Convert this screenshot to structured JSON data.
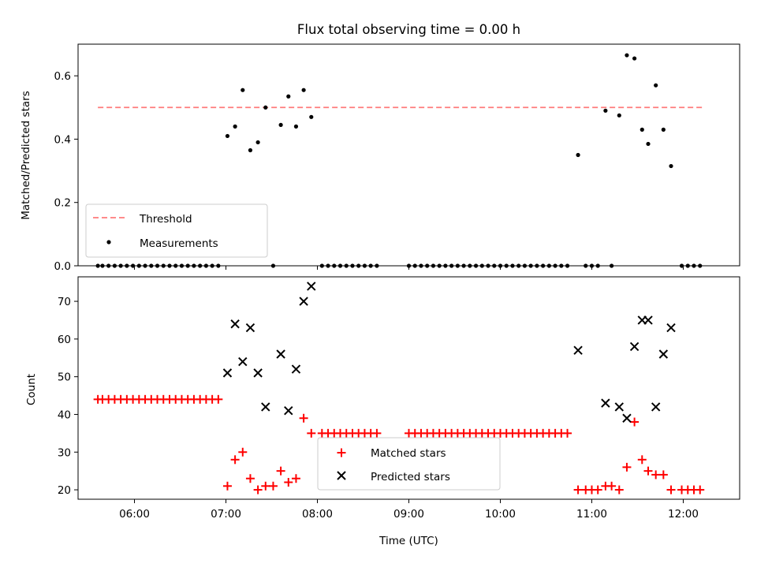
{
  "chart_data": [
    {
      "type": "scatter",
      "title": "Flux total observing time = 0.00 h",
      "ylabel": "Matched/Predicted stars",
      "ylim": [
        0,
        0.7
      ],
      "yticks": [
        0.0,
        0.2,
        0.4,
        0.6
      ],
      "ytick_labels": [
        "0.0",
        "0.2",
        "0.4",
        "0.6"
      ],
      "legend_position": "lower-left",
      "threshold": {
        "name": "Threshold",
        "value": 0.5,
        "x_start": "05:36",
        "x_end": "12:14",
        "color": "#ff7b7b",
        "style": "dashed"
      },
      "series": [
        {
          "name": "Measurements",
          "color": "#000000",
          "marker": "dot",
          "points": [
            [
              "05:36",
              0
            ],
            [
              "05:39",
              0
            ],
            [
              "05:43",
              0
            ],
            [
              "05:47",
              0
            ],
            [
              "05:51",
              0
            ],
            [
              "05:55",
              0
            ],
            [
              "05:59",
              0
            ],
            [
              "06:03",
              0
            ],
            [
              "06:07",
              0
            ],
            [
              "06:11",
              0
            ],
            [
              "06:15",
              0
            ],
            [
              "06:19",
              0
            ],
            [
              "06:23",
              0
            ],
            [
              "06:27",
              0
            ],
            [
              "06:31",
              0
            ],
            [
              "06:35",
              0
            ],
            [
              "06:39",
              0
            ],
            [
              "06:43",
              0
            ],
            [
              "06:47",
              0
            ],
            [
              "06:51",
              0
            ],
            [
              "06:55",
              0
            ],
            [
              "07:01",
              0.41
            ],
            [
              "07:06",
              0.44
            ],
            [
              "07:11",
              0.555
            ],
            [
              "07:16",
              0.365
            ],
            [
              "07:21",
              0.39
            ],
            [
              "07:26",
              0.5
            ],
            [
              "07:31",
              0
            ],
            [
              "07:36",
              0.445
            ],
            [
              "07:41",
              0.535
            ],
            [
              "07:46",
              0.44
            ],
            [
              "07:51",
              0.555
            ],
            [
              "07:56",
              0.47
            ],
            [
              "08:03",
              0
            ],
            [
              "08:07",
              0
            ],
            [
              "08:11",
              0
            ],
            [
              "08:15",
              0
            ],
            [
              "08:19",
              0
            ],
            [
              "08:23",
              0
            ],
            [
              "08:27",
              0
            ],
            [
              "08:31",
              0
            ],
            [
              "08:35",
              0
            ],
            [
              "08:39",
              0
            ],
            [
              "09:00",
              0
            ],
            [
              "09:04",
              0
            ],
            [
              "09:08",
              0
            ],
            [
              "09:12",
              0
            ],
            [
              "09:16",
              0
            ],
            [
              "09:20",
              0
            ],
            [
              "09:24",
              0
            ],
            [
              "09:28",
              0
            ],
            [
              "09:32",
              0
            ],
            [
              "09:36",
              0
            ],
            [
              "09:40",
              0
            ],
            [
              "09:44",
              0
            ],
            [
              "09:48",
              0
            ],
            [
              "09:52",
              0
            ],
            [
              "09:56",
              0
            ],
            [
              "10:00",
              0
            ],
            [
              "10:04",
              0
            ],
            [
              "10:08",
              0
            ],
            [
              "10:12",
              0
            ],
            [
              "10:16",
              0
            ],
            [
              "10:20",
              0
            ],
            [
              "10:24",
              0
            ],
            [
              "10:28",
              0
            ],
            [
              "10:32",
              0
            ],
            [
              "10:36",
              0
            ],
            [
              "10:40",
              0
            ],
            [
              "10:44",
              0
            ],
            [
              "10:51",
              0.35
            ],
            [
              "10:56",
              0
            ],
            [
              "11:00",
              0
            ],
            [
              "11:04",
              0
            ],
            [
              "11:09",
              0.49
            ],
            [
              "11:13",
              0
            ],
            [
              "11:18",
              0.475
            ],
            [
              "11:23",
              0.665
            ],
            [
              "11:28",
              0.655
            ],
            [
              "11:33",
              0.43
            ],
            [
              "11:37",
              0.385
            ],
            [
              "11:42",
              0.57
            ],
            [
              "11:47",
              0.43
            ],
            [
              "11:52",
              0.315
            ],
            [
              "11:59",
              0
            ],
            [
              "12:03",
              0
            ],
            [
              "12:07",
              0
            ],
            [
              "12:11",
              0
            ]
          ]
        }
      ]
    },
    {
      "type": "scatter",
      "xlabel": "Time (UTC)",
      "ylabel": "Count",
      "xlim": [
        "05:23",
        "12:37"
      ],
      "ylim": [
        17.5,
        76.5
      ],
      "xticks": [
        "06:00",
        "07:00",
        "08:00",
        "09:00",
        "10:00",
        "11:00",
        "12:00"
      ],
      "yticks": [
        20,
        30,
        40,
        50,
        60,
        70
      ],
      "ytick_labels": [
        "20",
        "30",
        "40",
        "50",
        "60",
        "70"
      ],
      "legend_position": "lower-center",
      "series": [
        {
          "name": "Matched stars",
          "color": "#ff0000",
          "marker": "plus",
          "points": [
            [
              "05:36",
              44
            ],
            [
              "05:39",
              44
            ],
            [
              "05:43",
              44
            ],
            [
              "05:47",
              44
            ],
            [
              "05:51",
              44
            ],
            [
              "05:55",
              44
            ],
            [
              "05:59",
              44
            ],
            [
              "06:03",
              44
            ],
            [
              "06:07",
              44
            ],
            [
              "06:11",
              44
            ],
            [
              "06:15",
              44
            ],
            [
              "06:19",
              44
            ],
            [
              "06:23",
              44
            ],
            [
              "06:27",
              44
            ],
            [
              "06:31",
              44
            ],
            [
              "06:35",
              44
            ],
            [
              "06:39",
              44
            ],
            [
              "06:43",
              44
            ],
            [
              "06:47",
              44
            ],
            [
              "06:51",
              44
            ],
            [
              "06:55",
              44
            ],
            [
              "07:01",
              21
            ],
            [
              "07:06",
              28
            ],
            [
              "07:11",
              30
            ],
            [
              "07:16",
              23
            ],
            [
              "07:21",
              20
            ],
            [
              "07:26",
              21
            ],
            [
              "07:31",
              21
            ],
            [
              "07:36",
              25
            ],
            [
              "07:41",
              22
            ],
            [
              "07:46",
              23
            ],
            [
              "07:51",
              39
            ],
            [
              "07:56",
              35
            ],
            [
              "08:03",
              35
            ],
            [
              "08:07",
              35
            ],
            [
              "08:11",
              35
            ],
            [
              "08:15",
              35
            ],
            [
              "08:19",
              35
            ],
            [
              "08:23",
              35
            ],
            [
              "08:27",
              35
            ],
            [
              "08:31",
              35
            ],
            [
              "08:35",
              35
            ],
            [
              "08:39",
              35
            ],
            [
              "09:00",
              35
            ],
            [
              "09:04",
              35
            ],
            [
              "09:08",
              35
            ],
            [
              "09:12",
              35
            ],
            [
              "09:16",
              35
            ],
            [
              "09:20",
              35
            ],
            [
              "09:24",
              35
            ],
            [
              "09:28",
              35
            ],
            [
              "09:32",
              35
            ],
            [
              "09:36",
              35
            ],
            [
              "09:40",
              35
            ],
            [
              "09:44",
              35
            ],
            [
              "09:48",
              35
            ],
            [
              "09:52",
              35
            ],
            [
              "09:56",
              35
            ],
            [
              "10:00",
              35
            ],
            [
              "10:04",
              35
            ],
            [
              "10:08",
              35
            ],
            [
              "10:12",
              35
            ],
            [
              "10:16",
              35
            ],
            [
              "10:20",
              35
            ],
            [
              "10:24",
              35
            ],
            [
              "10:28",
              35
            ],
            [
              "10:32",
              35
            ],
            [
              "10:36",
              35
            ],
            [
              "10:40",
              35
            ],
            [
              "10:44",
              35
            ],
            [
              "10:51",
              20
            ],
            [
              "10:56",
              20
            ],
            [
              "11:00",
              20
            ],
            [
              "11:04",
              20
            ],
            [
              "11:09",
              21
            ],
            [
              "11:13",
              21
            ],
            [
              "11:18",
              20
            ],
            [
              "11:23",
              26
            ],
            [
              "11:28",
              38
            ],
            [
              "11:33",
              28
            ],
            [
              "11:37",
              25
            ],
            [
              "11:42",
              24
            ],
            [
              "11:47",
              24
            ],
            [
              "11:52",
              20
            ],
            [
              "11:59",
              20
            ],
            [
              "12:03",
              20
            ],
            [
              "12:07",
              20
            ],
            [
              "12:11",
              20
            ]
          ]
        },
        {
          "name": "Predicted stars",
          "color": "#000000",
          "marker": "x",
          "points": [
            [
              "07:01",
              51
            ],
            [
              "07:06",
              64
            ],
            [
              "07:11",
              54
            ],
            [
              "07:16",
              63
            ],
            [
              "07:21",
              51
            ],
            [
              "07:26",
              42
            ],
            [
              "07:36",
              56
            ],
            [
              "07:41",
              41
            ],
            [
              "07:46",
              52
            ],
            [
              "07:51",
              70
            ],
            [
              "07:56",
              74
            ],
            [
              "10:51",
              57
            ],
            [
              "11:09",
              43
            ],
            [
              "11:18",
              42
            ],
            [
              "11:23",
              39
            ],
            [
              "11:28",
              58
            ],
            [
              "11:33",
              65
            ],
            [
              "11:37",
              65
            ],
            [
              "11:42",
              42
            ],
            [
              "11:47",
              56
            ],
            [
              "11:52",
              63
            ]
          ]
        }
      ]
    }
  ]
}
